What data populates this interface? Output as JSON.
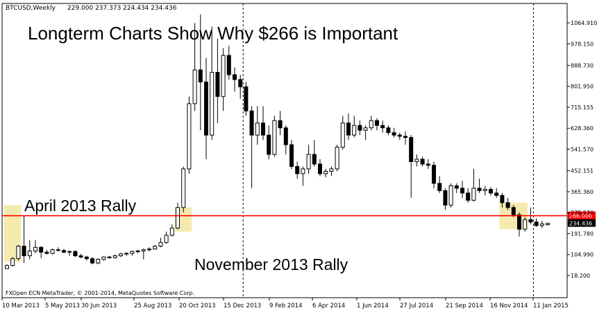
{
  "header": {
    "symbol": "BTCUSD,Weekly",
    "ohlc": "229.000 237.373 224.434 234.436"
  },
  "annotations": {
    "title": "Longterm Charts Show Why $266 is Important",
    "rally1": "April 2013 Rally",
    "rally2": "November 2013 Rally"
  },
  "footer": {
    "copyright": "FXOpen ECN MetaTrader, © 2001-2014, MetaQuotes Software Corp."
  },
  "chart_data": {
    "type": "candlestick",
    "title": "Longterm Charts Show Why $266 is Important",
    "symbol": "BTCUSD",
    "timeframe": "Weekly",
    "ylim": [
      18.2,
      1100
    ],
    "y_ticks": [
      "1064.910",
      "978.150",
      "888.730",
      "801.950",
      "715.155",
      "628.360",
      "541.570",
      "452.151",
      "365.360",
      "278.570",
      "191.780",
      "104.990",
      "18.200"
    ],
    "x_ticks": [
      "10 Mar 2013",
      "5 May 2013",
      "30 Jun 2013",
      "25 Aug 2013",
      "20 Oct 2013",
      "15 Dec 2013",
      "9 Feb 2014",
      "6 Apr 2014",
      "1 Jun 2014",
      "27 Jul 2014",
      "21 Sep 2014",
      "16 Nov 2014",
      "11 Jan 2015"
    ],
    "level_line": {
      "value": 266.0,
      "label": "266.000",
      "color": "#ff0000"
    },
    "last_price": {
      "value": 234.436,
      "label": "234.436"
    },
    "period_separators": [
      "2014-01",
      "2015-01"
    ],
    "highlight_zones": [
      {
        "label": "April 2013 Rally",
        "x_index": [
          0,
          2
        ],
        "y": [
          75,
          310
        ]
      },
      {
        "label": "November 2013 Rally",
        "x_index": [
          30,
          32
        ],
        "y": [
          200,
          300
        ]
      },
      {
        "label": "",
        "x_index": [
          87,
          91
        ],
        "y": [
          210,
          320
        ]
      }
    ],
    "candles": [
      {
        "o": 47,
        "h": 65,
        "l": 45,
        "c": 60
      },
      {
        "o": 60,
        "h": 95,
        "l": 55,
        "c": 88
      },
      {
        "o": 88,
        "h": 145,
        "l": 80,
        "c": 140
      },
      {
        "o": 140,
        "h": 266,
        "l": 70,
        "c": 100
      },
      {
        "o": 100,
        "h": 165,
        "l": 85,
        "c": 120
      },
      {
        "o": 120,
        "h": 165,
        "l": 110,
        "c": 135
      },
      {
        "o": 135,
        "h": 140,
        "l": 90,
        "c": 115
      },
      {
        "o": 115,
        "h": 125,
        "l": 105,
        "c": 110
      },
      {
        "o": 110,
        "h": 130,
        "l": 105,
        "c": 125
      },
      {
        "o": 125,
        "h": 135,
        "l": 118,
        "c": 122
      },
      {
        "o": 122,
        "h": 128,
        "l": 110,
        "c": 115
      },
      {
        "o": 115,
        "h": 122,
        "l": 100,
        "c": 118
      },
      {
        "o": 118,
        "h": 122,
        "l": 95,
        "c": 100
      },
      {
        "o": 100,
        "h": 108,
        "l": 90,
        "c": 95
      },
      {
        "o": 95,
        "h": 100,
        "l": 80,
        "c": 88
      },
      {
        "o": 88,
        "h": 95,
        "l": 65,
        "c": 70
      },
      {
        "o": 70,
        "h": 90,
        "l": 65,
        "c": 85
      },
      {
        "o": 85,
        "h": 98,
        "l": 80,
        "c": 95
      },
      {
        "o": 95,
        "h": 100,
        "l": 88,
        "c": 92
      },
      {
        "o": 92,
        "h": 105,
        "l": 88,
        "c": 100
      },
      {
        "o": 100,
        "h": 112,
        "l": 95,
        "c": 108
      },
      {
        "o": 108,
        "h": 115,
        "l": 100,
        "c": 110
      },
      {
        "o": 110,
        "h": 122,
        "l": 100,
        "c": 118
      },
      {
        "o": 118,
        "h": 125,
        "l": 110,
        "c": 120
      },
      {
        "o": 120,
        "h": 130,
        "l": 85,
        "c": 125
      },
      {
        "o": 125,
        "h": 135,
        "l": 118,
        "c": 128
      },
      {
        "o": 128,
        "h": 145,
        "l": 125,
        "c": 140
      },
      {
        "o": 140,
        "h": 175,
        "l": 135,
        "c": 155
      },
      {
        "o": 155,
        "h": 200,
        "l": 150,
        "c": 185
      },
      {
        "o": 185,
        "h": 230,
        "l": 180,
        "c": 215
      },
      {
        "o": 215,
        "h": 320,
        "l": 210,
        "c": 300
      },
      {
        "o": 300,
        "h": 470,
        "l": 280,
        "c": 460
      },
      {
        "o": 460,
        "h": 760,
        "l": 440,
        "c": 730
      },
      {
        "o": 730,
        "h": 1064,
        "l": 700,
        "c": 870
      },
      {
        "o": 870,
        "h": 1100,
        "l": 620,
        "c": 820
      },
      {
        "o": 820,
        "h": 920,
        "l": 500,
        "c": 600
      },
      {
        "o": 600,
        "h": 1050,
        "l": 580,
        "c": 860
      },
      {
        "o": 860,
        "h": 1000,
        "l": 650,
        "c": 760
      },
      {
        "o": 760,
        "h": 960,
        "l": 700,
        "c": 930
      },
      {
        "o": 930,
        "h": 970,
        "l": 830,
        "c": 850
      },
      {
        "o": 850,
        "h": 880,
        "l": 780,
        "c": 830
      },
      {
        "o": 830,
        "h": 850,
        "l": 750,
        "c": 800
      },
      {
        "o": 800,
        "h": 820,
        "l": 680,
        "c": 700
      },
      {
        "o": 700,
        "h": 720,
        "l": 380,
        "c": 600
      },
      {
        "o": 600,
        "h": 720,
        "l": 560,
        "c": 650
      },
      {
        "o": 650,
        "h": 720,
        "l": 580,
        "c": 600
      },
      {
        "o": 600,
        "h": 640,
        "l": 500,
        "c": 520
      },
      {
        "o": 520,
        "h": 680,
        "l": 510,
        "c": 660
      },
      {
        "o": 660,
        "h": 700,
        "l": 600,
        "c": 630
      },
      {
        "o": 630,
        "h": 640,
        "l": 520,
        "c": 560
      },
      {
        "o": 560,
        "h": 580,
        "l": 460,
        "c": 470
      },
      {
        "o": 470,
        "h": 490,
        "l": 420,
        "c": 440
      },
      {
        "o": 440,
        "h": 470,
        "l": 390,
        "c": 460
      },
      {
        "o": 460,
        "h": 560,
        "l": 440,
        "c": 520
      },
      {
        "o": 520,
        "h": 580,
        "l": 470,
        "c": 480
      },
      {
        "o": 480,
        "h": 500,
        "l": 430,
        "c": 440
      },
      {
        "o": 440,
        "h": 460,
        "l": 425,
        "c": 450
      },
      {
        "o": 450,
        "h": 470,
        "l": 430,
        "c": 460
      },
      {
        "o": 460,
        "h": 560,
        "l": 450,
        "c": 550
      },
      {
        "o": 550,
        "h": 680,
        "l": 540,
        "c": 650
      },
      {
        "o": 650,
        "h": 690,
        "l": 580,
        "c": 600
      },
      {
        "o": 600,
        "h": 680,
        "l": 590,
        "c": 640
      },
      {
        "o": 640,
        "h": 660,
        "l": 600,
        "c": 620
      },
      {
        "o": 620,
        "h": 640,
        "l": 580,
        "c": 630
      },
      {
        "o": 630,
        "h": 680,
        "l": 620,
        "c": 660
      },
      {
        "o": 660,
        "h": 670,
        "l": 620,
        "c": 640
      },
      {
        "o": 640,
        "h": 660,
        "l": 610,
        "c": 630
      },
      {
        "o": 630,
        "h": 640,
        "l": 600,
        "c": 610
      },
      {
        "o": 610,
        "h": 630,
        "l": 590,
        "c": 600
      },
      {
        "o": 600,
        "h": 610,
        "l": 580,
        "c": 595
      },
      {
        "o": 595,
        "h": 615,
        "l": 560,
        "c": 590
      },
      {
        "o": 590,
        "h": 600,
        "l": 340,
        "c": 490
      },
      {
        "o": 490,
        "h": 520,
        "l": 470,
        "c": 500
      },
      {
        "o": 500,
        "h": 510,
        "l": 470,
        "c": 480
      },
      {
        "o": 480,
        "h": 500,
        "l": 460,
        "c": 475
      },
      {
        "o": 475,
        "h": 490,
        "l": 380,
        "c": 400
      },
      {
        "o": 400,
        "h": 430,
        "l": 360,
        "c": 370
      },
      {
        "o": 370,
        "h": 380,
        "l": 290,
        "c": 310
      },
      {
        "o": 310,
        "h": 400,
        "l": 300,
        "c": 390
      },
      {
        "o": 390,
        "h": 400,
        "l": 360,
        "c": 380
      },
      {
        "o": 380,
        "h": 410,
        "l": 340,
        "c": 360
      },
      {
        "o": 360,
        "h": 380,
        "l": 320,
        "c": 330
      },
      {
        "o": 330,
        "h": 460,
        "l": 325,
        "c": 380
      },
      {
        "o": 380,
        "h": 420,
        "l": 360,
        "c": 370
      },
      {
        "o": 370,
        "h": 390,
        "l": 350,
        "c": 375
      },
      {
        "o": 375,
        "h": 385,
        "l": 350,
        "c": 360
      },
      {
        "o": 360,
        "h": 380,
        "l": 340,
        "c": 350
      },
      {
        "o": 350,
        "h": 360,
        "l": 300,
        "c": 320
      },
      {
        "o": 320,
        "h": 340,
        "l": 290,
        "c": 300
      },
      {
        "o": 300,
        "h": 310,
        "l": 260,
        "c": 270
      },
      {
        "o": 270,
        "h": 280,
        "l": 180,
        "c": 210
      },
      {
        "o": 210,
        "h": 260,
        "l": 200,
        "c": 250
      },
      {
        "o": 250,
        "h": 300,
        "l": 230,
        "c": 240
      },
      {
        "o": 240,
        "h": 255,
        "l": 220,
        "c": 225
      },
      {
        "o": 225,
        "h": 245,
        "l": 215,
        "c": 232
      },
      {
        "o": 229,
        "h": 237.373,
        "l": 224.434,
        "c": 234.436
      }
    ]
  }
}
